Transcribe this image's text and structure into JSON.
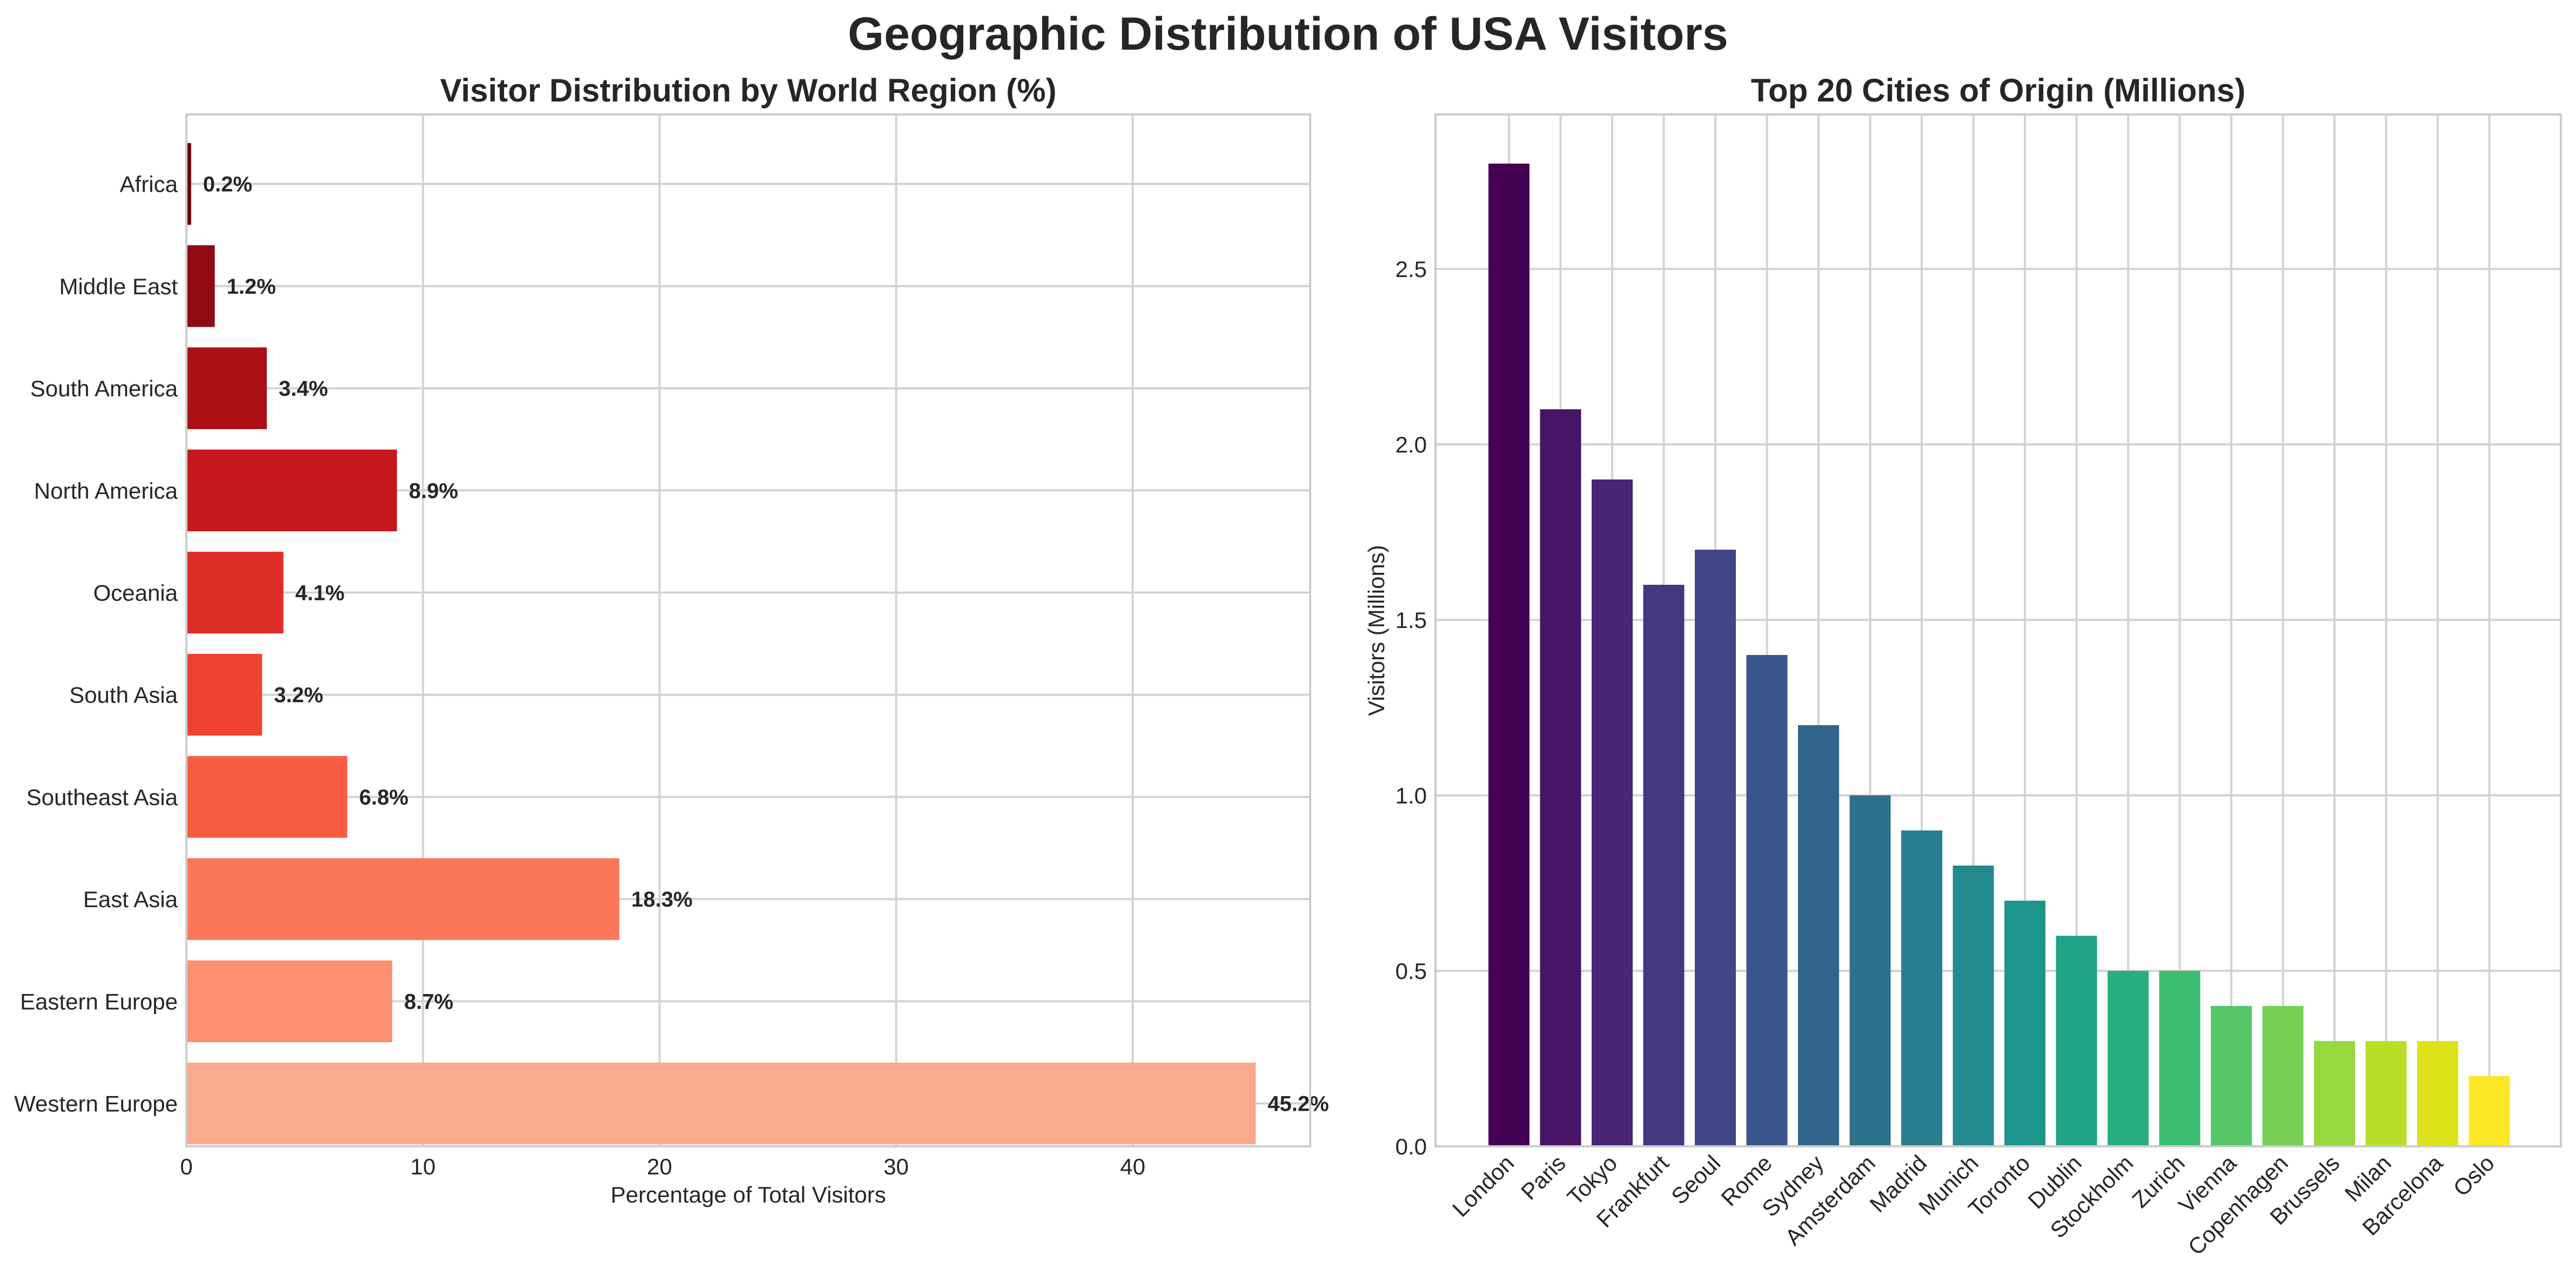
{
  "title": "Geographic Distribution of USA Visitors",
  "chart_data": [
    {
      "type": "bar",
      "orientation": "horizontal",
      "title": "Visitor Distribution by World Region (%)",
      "xlabel": "Percentage of Total Visitors",
      "ylabel": "",
      "categories": [
        "Western Europe",
        "Eastern Europe",
        "East Asia",
        "Southeast Asia",
        "South Asia",
        "Oceania",
        "North America",
        "South America",
        "Middle East",
        "Africa"
      ],
      "values": [
        45.2,
        8.7,
        18.3,
        6.8,
        3.2,
        4.1,
        8.9,
        3.4,
        1.2,
        0.2
      ],
      "value_labels": [
        "45.2%",
        "8.7%",
        "18.3%",
        "6.8%",
        "3.2%",
        "4.1%",
        "8.9%",
        "3.4%",
        "1.2%",
        "0.2%"
      ],
      "colors": [
        "#fcaa8d",
        "#fc9070",
        "#fb7757",
        "#f85d42",
        "#f14130",
        "#de2c26",
        "#c5171c",
        "#ab1016",
        "#8f0b13",
        "#67000d"
      ],
      "xlim": [
        0,
        47.5
      ],
      "xticks": [
        0,
        10,
        20,
        30,
        40
      ],
      "grid": true
    },
    {
      "type": "bar",
      "title": "Top 20 Cities of Origin (Millions)",
      "xlabel": "",
      "ylabel": "Visitors (Millions)",
      "categories": [
        "London",
        "Paris",
        "Tokyo",
        "Frankfurt",
        "Seoul",
        "Rome",
        "Sydney",
        "Amsterdam",
        "Madrid",
        "Munich",
        "Toronto",
        "Dublin",
        "Stockholm",
        "Zurich",
        "Vienna",
        "Copenhagen",
        "Brussels",
        "Milan",
        "Barcelona",
        "Oslo"
      ],
      "values": [
        2.8,
        2.1,
        1.9,
        1.6,
        1.7,
        1.4,
        1.2,
        1.0,
        0.9,
        0.8,
        0.7,
        0.6,
        0.5,
        0.5,
        0.4,
        0.4,
        0.3,
        0.3,
        0.3,
        0.2
      ],
      "colors": [
        "#440154",
        "#481467",
        "#482576",
        "#453781",
        "#3f4788",
        "#39558c",
        "#32648e",
        "#2d718e",
        "#287d8e",
        "#238a8d",
        "#1f968b",
        "#20a386",
        "#29af7f",
        "#3dbc74",
        "#56c667",
        "#75d054",
        "#95d840",
        "#bade28",
        "#dde318",
        "#fde725"
      ],
      "ylim": [
        0,
        2.94
      ],
      "yticks": [
        "0.0",
        "0.5",
        "1.0",
        "1.5",
        "2.0",
        "2.5"
      ],
      "grid": true
    }
  ]
}
